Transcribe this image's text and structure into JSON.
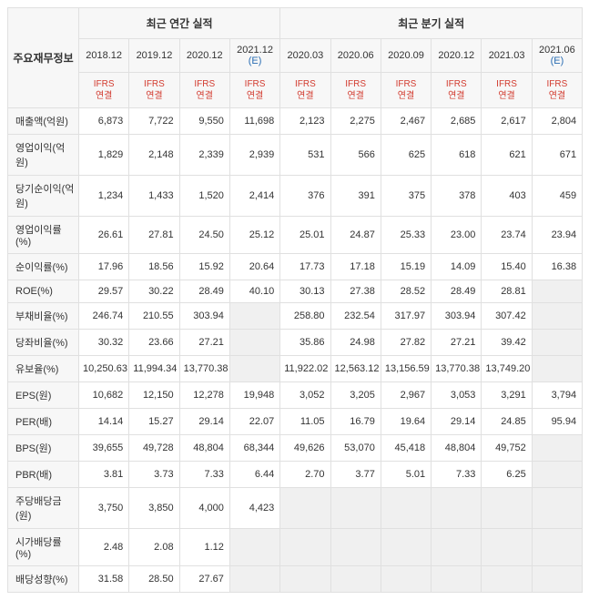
{
  "header": {
    "rowlabel": "주요재무정보",
    "group_annual": "최근 연간 실적",
    "group_quarter": "최근 분기 실적",
    "annual_periods": [
      "2018.12",
      "2019.12",
      "2020.12",
      "2021.12 (E)"
    ],
    "quarter_periods": [
      "2020.03",
      "2020.06",
      "2020.09",
      "2020.12",
      "2021.03",
      "2021.06 (E)"
    ],
    "sub_line1": "IFRS",
    "sub_line2": "연결"
  },
  "rows": [
    {
      "label": "매출액(억원)",
      "sep": true,
      "annual": [
        "6,873",
        "7,722",
        "9,550",
        "11,698"
      ],
      "quarter": [
        "2,123",
        "2,275",
        "2,467",
        "2,685",
        "2,617",
        "2,804"
      ]
    },
    {
      "label": "영업이익(억원)",
      "annual": [
        "1,829",
        "2,148",
        "2,339",
        "2,939"
      ],
      "quarter": [
        "531",
        "566",
        "625",
        "618",
        "621",
        "671"
      ]
    },
    {
      "label": "당기순이익(억원)",
      "annual": [
        "1,234",
        "1,433",
        "1,520",
        "2,414"
      ],
      "quarter": [
        "376",
        "391",
        "375",
        "378",
        "403",
        "459"
      ]
    },
    {
      "label": "영업이익률(%)",
      "sep": true,
      "annual": [
        "26.61",
        "27.81",
        "24.50",
        "25.12"
      ],
      "quarter": [
        "25.01",
        "24.87",
        "25.33",
        "23.00",
        "23.74",
        "23.94"
      ]
    },
    {
      "label": "순이익률(%)",
      "annual": [
        "17.96",
        "18.56",
        "15.92",
        "20.64"
      ],
      "quarter": [
        "17.73",
        "17.18",
        "15.19",
        "14.09",
        "15.40",
        "16.38"
      ]
    },
    {
      "label": "ROE(%)",
      "annual": [
        "29.57",
        "30.22",
        "28.49",
        "40.10"
      ],
      "quarter": [
        "30.13",
        "27.38",
        "28.52",
        "28.49",
        "28.81",
        ""
      ]
    },
    {
      "label": "부채비율(%)",
      "sep": true,
      "annual": [
        "246.74",
        "210.55",
        "303.94",
        ""
      ],
      "quarter": [
        "258.80",
        "232.54",
        "317.97",
        "303.94",
        "307.42",
        ""
      ]
    },
    {
      "label": "당좌비율(%)",
      "annual": [
        "30.32",
        "23.66",
        "27.21",
        ""
      ],
      "quarter": [
        "35.86",
        "24.98",
        "27.82",
        "27.21",
        "39.42",
        ""
      ]
    },
    {
      "label": "유보율(%)",
      "annual": [
        "10,250.63",
        "11,994.34",
        "13,770.38",
        ""
      ],
      "quarter": [
        "11,922.02",
        "12,563.12",
        "13,156.59",
        "13,770.38",
        "13,749.20",
        ""
      ]
    },
    {
      "label": "EPS(원)",
      "sep": true,
      "annual": [
        "10,682",
        "12,150",
        "12,278",
        "19,948"
      ],
      "quarter": [
        "3,052",
        "3,205",
        "2,967",
        "3,053",
        "3,291",
        "3,794"
      ]
    },
    {
      "label": "PER(배)",
      "annual": [
        "14.14",
        "15.27",
        "29.14",
        "22.07"
      ],
      "quarter": [
        "11.05",
        "16.79",
        "19.64",
        "29.14",
        "24.85",
        "95.94"
      ]
    },
    {
      "label": "BPS(원)",
      "annual": [
        "39,655",
        "49,728",
        "48,804",
        "68,344"
      ],
      "quarter": [
        "49,626",
        "53,070",
        "45,418",
        "48,804",
        "49,752",
        ""
      ]
    },
    {
      "label": "PBR(배)",
      "annual": [
        "3.81",
        "3.73",
        "7.33",
        "6.44"
      ],
      "quarter": [
        "2.70",
        "3.77",
        "5.01",
        "7.33",
        "6.25",
        ""
      ]
    },
    {
      "label": "주당배당금(원)",
      "sep": true,
      "annual": [
        "3,750",
        "3,850",
        "4,000",
        "4,423"
      ],
      "quarter": [
        "",
        "",
        "",
        "",
        "",
        ""
      ]
    },
    {
      "label": "시가배당률(%)",
      "annual": [
        "2.48",
        "2.08",
        "1.12",
        ""
      ],
      "quarter": [
        "",
        "",
        "",
        "",
        "",
        ""
      ]
    },
    {
      "label": "배당성향(%)",
      "annual": [
        "31.58",
        "28.50",
        "27.67",
        ""
      ],
      "quarter": [
        "",
        "",
        "",
        "",
        "",
        ""
      ]
    }
  ]
}
